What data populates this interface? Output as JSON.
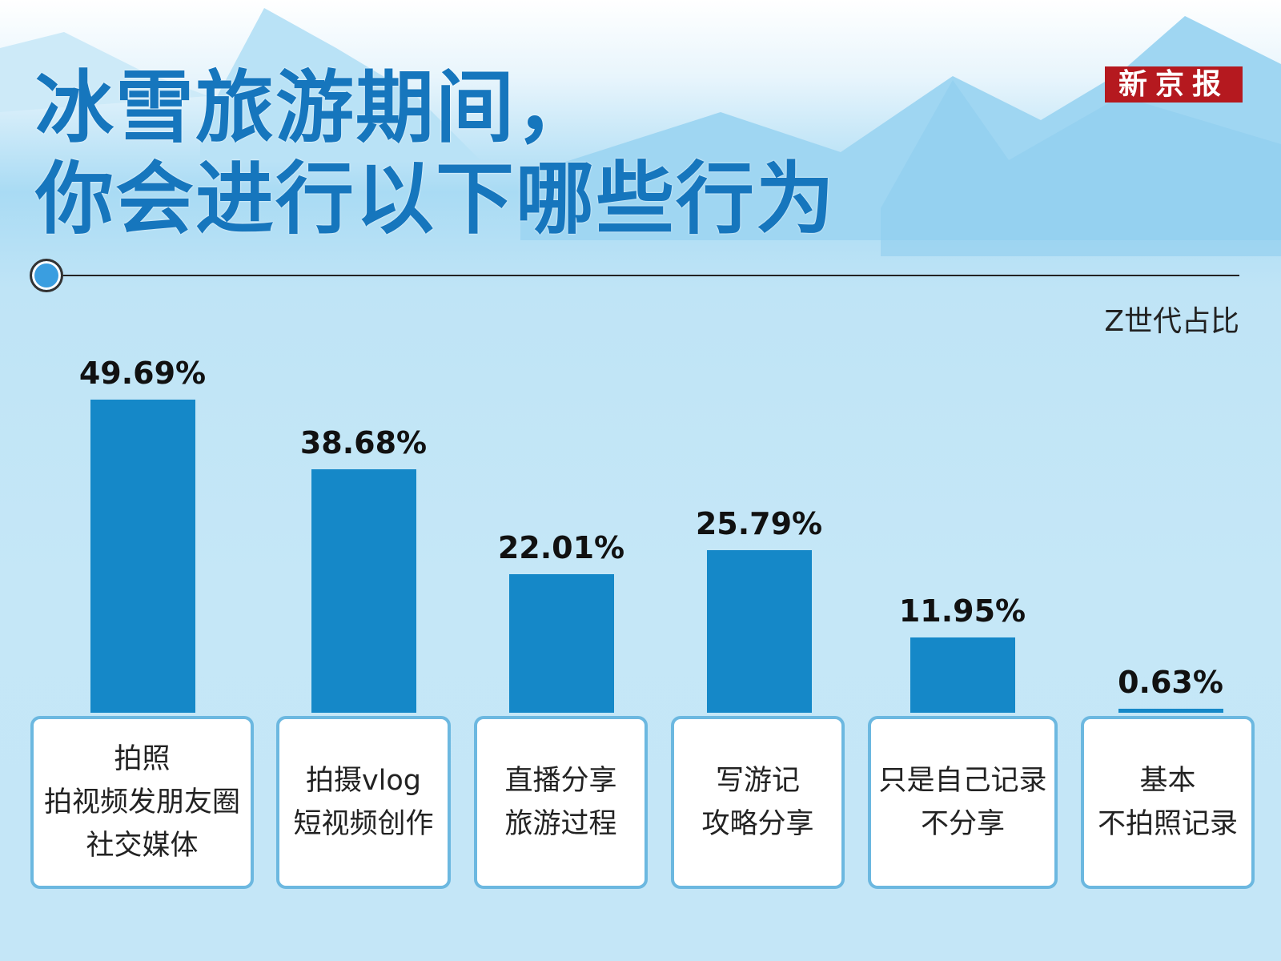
{
  "title": {
    "line1": "冰雪旅游期间，",
    "line2": "你会进行以下哪些行为"
  },
  "logo": "新京报",
  "colors": {
    "bar": "#1588c8",
    "title": "#1676bd",
    "logo": "#b5191f"
  },
  "chart_data": {
    "type": "bar",
    "legend": "Z世代占比",
    "categories": [
      [
        "拍照",
        "拍视频发朋友圈",
        "社交媒体"
      ],
      [
        "拍摄vlog",
        "短视频创作"
      ],
      [
        "直播分享",
        "旅游过程"
      ],
      [
        "写游记",
        "攻略分享"
      ],
      [
        "只是自己记录",
        "不分享"
      ],
      [
        "基本",
        "不拍照记录"
      ]
    ],
    "values": [
      49.69,
      38.68,
      22.01,
      25.79,
      11.95,
      0.63
    ],
    "labels": [
      "49.69%",
      "38.68%",
      "22.01%",
      "25.79%",
      "11.95%",
      "0.63%"
    ],
    "unit": "%"
  }
}
